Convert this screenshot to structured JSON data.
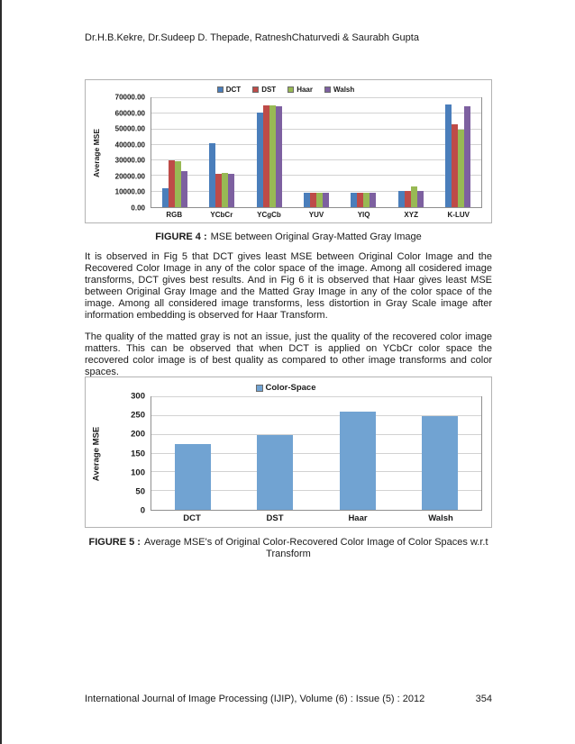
{
  "page": {
    "header": "Dr.H.B.Kekre, Dr.Sudeep D. Thepade, RatneshChaturvedi & Saurabh Gupta",
    "footer_journal": "International Journal of Image Processing (IJIP), Volume (6) : Issue (5) : 2012",
    "footer_page_number": "354"
  },
  "figure4_caption": {
    "label": "FIGURE 4 :",
    "text": "MSE between Original Gray-Matted Gray Image"
  },
  "figure5_caption": {
    "label": "FIGURE 5 :",
    "text": "Average MSE's of Original Color-Recovered Color Image of Color Spaces w.r.t Transform"
  },
  "body_text": {
    "paragraph1": "It is observed in Fig 5 that DCT gives least MSE between Original Color Image and the Recovered Color Image in any of the color space of the image. Among all cosidered image transforms, DCT gives best results. And in Fig 6 it is observed that Haar gives least MSE between Original Gray Image and the Matted Gray Image in any of the color space of the image. Among all considered image transforms, less distortion in Gray Scale image after information embedding is observed for Haar Transform.",
    "paragraph2": "The quality of the matted gray is not an issue, just the quality of the recovered color image matters. This can be observed that when DCT is applied on YCbCr color space the recovered color image is of best quality as compared to other image transforms and color spaces."
  },
  "chart_data": [
    {
      "type": "bar",
      "title": "",
      "ylabel": "Average MSE",
      "xlabel": "",
      "ylim": [
        0,
        70000
      ],
      "ytick_step": 10000,
      "ytick_labels": [
        "0.00",
        "10000.00",
        "20000.00",
        "30000.00",
        "40000.00",
        "50000.00",
        "60000.00",
        "70000.00"
      ],
      "categories": [
        "RGB",
        "YCbCr",
        "YCgCb",
        "YUV",
        "YIQ",
        "XYZ",
        "K-LUV"
      ],
      "series": [
        {
          "name": "DCT",
          "color": "#4A7EBB",
          "values": [
            12000,
            41000,
            61000,
            9000,
            9000,
            10500,
            66000
          ]
        },
        {
          "name": "DST",
          "color": "#BE4B48",
          "values": [
            30000,
            21500,
            65500,
            9000,
            9000,
            10500,
            53000
          ]
        },
        {
          "name": "Haar",
          "color": "#98B954",
          "values": [
            29500,
            22000,
            65500,
            9000,
            9500,
            13500,
            50000
          ]
        },
        {
          "name": "Walsh",
          "color": "#7D60A0",
          "values": [
            23000,
            21500,
            65000,
            9000,
            9000,
            10500,
            65000
          ]
        }
      ],
      "legend_position": "top",
      "grid": true
    },
    {
      "type": "bar",
      "title": "",
      "ylabel": "Average MSE",
      "xlabel": "",
      "ylim": [
        0,
        300
      ],
      "ytick_step": 50,
      "ytick_labels": [
        "0",
        "50",
        "100",
        "150",
        "200",
        "250",
        "300"
      ],
      "categories": [
        "DCT",
        "DST",
        "Haar",
        "Walsh"
      ],
      "series": [
        {
          "name": "Color-Space",
          "color": "#71A3D2",
          "values": [
            175,
            200,
            262,
            250
          ]
        }
      ],
      "legend_position": "top",
      "grid": true
    }
  ]
}
